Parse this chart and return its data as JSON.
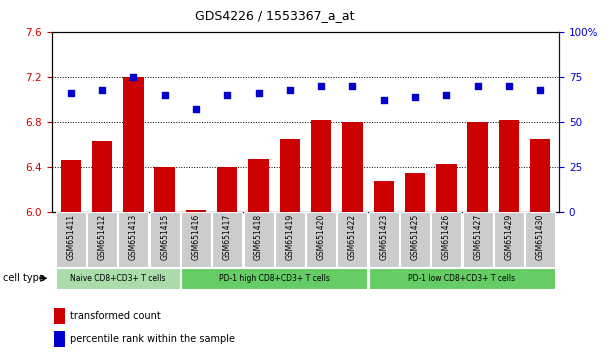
{
  "title": "GDS4226 / 1553367_a_at",
  "samples": [
    "GSM651411",
    "GSM651412",
    "GSM651413",
    "GSM651415",
    "GSM651416",
    "GSM651417",
    "GSM651418",
    "GSM651419",
    "GSM651420",
    "GSM651422",
    "GSM651423",
    "GSM651425",
    "GSM651426",
    "GSM651427",
    "GSM651429",
    "GSM651430"
  ],
  "transformed_count": [
    6.46,
    6.63,
    7.2,
    6.4,
    6.02,
    6.4,
    6.47,
    6.65,
    6.82,
    6.8,
    6.28,
    6.35,
    6.43,
    6.8,
    6.82,
    6.65
  ],
  "percentile_rank": [
    66,
    68,
    75,
    65,
    57,
    65,
    66,
    68,
    70,
    70,
    62,
    64,
    65,
    70,
    70,
    68
  ],
  "ylim_left": [
    6.0,
    7.6
  ],
  "ylim_right": [
    0,
    100
  ],
  "yticks_left": [
    6.0,
    6.4,
    6.8,
    7.2,
    7.6
  ],
  "yticks_right": [
    0,
    25,
    50,
    75,
    100
  ],
  "bar_color": "#cc0000",
  "dot_color": "#0000cc",
  "groups": [
    {
      "label": "Naive CD8+CD3+ T cells",
      "start": 0,
      "end": 3,
      "color": "#aaddaa"
    },
    {
      "label": "PD-1 high CD8+CD3+ T cells",
      "start": 4,
      "end": 9,
      "color": "#66cc66"
    },
    {
      "label": "PD-1 low CD8+CD3+ T cells",
      "start": 10,
      "end": 15,
      "color": "#66cc66"
    }
  ],
  "legend_bar_label": "transformed count",
  "legend_dot_label": "percentile rank within the sample",
  "cell_type_label": "cell type"
}
